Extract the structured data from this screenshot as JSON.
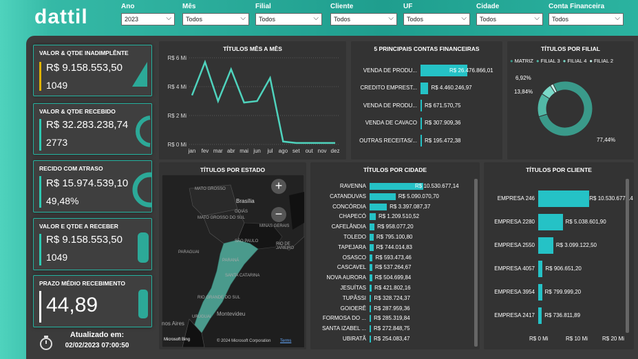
{
  "brand": {
    "logo": "dattil"
  },
  "filters": [
    {
      "label": "Ano",
      "value": "2023"
    },
    {
      "label": "Mês",
      "value": "Todos"
    },
    {
      "label": "Filial",
      "value": "Todos"
    },
    {
      "label": "Cliente",
      "value": "Todos"
    },
    {
      "label": "UF",
      "value": "Todos"
    },
    {
      "label": "Cidade",
      "value": "Todos"
    },
    {
      "label": "Conta Financeira",
      "value": "Todos"
    }
  ],
  "kpis": {
    "inadimplente": {
      "title": "VALOR & QTDE INADIMPLÊNTE",
      "value": "R$ 9.158.553,50",
      "count": "1049",
      "accent": "#e0b400"
    },
    "recebido": {
      "title": "VALOR & QTDE RECEBIDO",
      "value": "R$ 32.283.238,74",
      "count": "2773",
      "accent": "#2ec9b2"
    },
    "atraso": {
      "title": "RECIDO COM ATRASO",
      "value": "R$ 15.974.539,10",
      "count": "49,48%",
      "accent": "#2ec9b2"
    },
    "a_receber": {
      "title": "VALOR E QTDE A RECEBER",
      "value": "R$ 9.158.553,50",
      "count": "1049",
      "accent": "#2ec9b2"
    },
    "prazo": {
      "title": "PRAZO MÉDIO RECEBIMENTO",
      "value": "44,89"
    }
  },
  "footer": {
    "label": "Atualizado em:",
    "datetime": "02/02/2023 07:00:50"
  },
  "map": {
    "title": "TÍTULOS POR ESTADO",
    "labels": [
      "MATO GROSSO",
      "Brasília",
      "GOIÁS",
      "MINAS GERAIS",
      "PARAGUAI",
      "SÃO PAULO",
      "PARANÁ",
      "SANTA CATARINA",
      "RIO GRANDE DO SUL",
      "URUGUAI",
      "Montevideu",
      "nos Aires",
      "RIO DE JANEIRO",
      "MATO GROSSO DO SUL"
    ],
    "zoom_in": "+",
    "zoom_out": "−",
    "attribution": "© 2024 Microsoft Corporation",
    "terms": "Terms",
    "bing": "Microsoft Bing"
  },
  "chart_data": [
    {
      "type": "line",
      "title": "TÍTULOS MÊS A MÊS",
      "x": [
        "jan",
        "fev",
        "mar",
        "abr",
        "mai",
        "jun",
        "jul",
        "ago",
        "set",
        "out",
        "nov",
        "dez"
      ],
      "series": [
        {
          "values": [
            3.4,
            5.7,
            3.0,
            5.2,
            2.9,
            3.0,
            4.6,
            0.2,
            0.1,
            0.1,
            0.1,
            0.1
          ]
        }
      ],
      "yticks": [
        "R$ 0 Mi",
        "R$ 2 Mi",
        "R$ 4 Mi",
        "R$ 6 Mi"
      ],
      "ylim": [
        0,
        6
      ],
      "color": "#4fd3bd"
    },
    {
      "type": "bar",
      "title": "5 PRINCIPAIS CONTAS FINANCEIRAS",
      "categories": [
        "VENDA DE PRODU...",
        "CREDITO EMPREST...",
        "VENDA DE PRODU...",
        "VENDA DE CAVACO",
        "OUTRAS RECEITAS/..."
      ],
      "values": [
        26476866.01,
        4460246.97,
        671570.75,
        307909.36,
        195472.38
      ],
      "labels": [
        "R$ 26.476.866,01",
        "R$ 4.460.246,97",
        "R$ 671.570,75",
        "R$ 307.909,36",
        "R$ 195.472,38"
      ],
      "color": "#25c2c6"
    },
    {
      "type": "pie",
      "title": "TÍTULOS POR FILIAL",
      "categories": [
        "MATRIZ",
        "FILIAL 3",
        "FILIAL 4",
        "FILIAL 2"
      ],
      "values": [
        77.44,
        13.84,
        6.92,
        1.8
      ],
      "labels": [
        "77,44%",
        "13,84%",
        "6,92%"
      ],
      "colors": [
        "#3a9a8a",
        "#52b8a6",
        "#7ad9c8",
        "#c9f2ea"
      ]
    },
    {
      "type": "bar",
      "title": "TÍTULOS POR CIDADE",
      "categories": [
        "RAVENNA",
        "CATANDUVAS",
        "CONCÓRDIA",
        "CHAPECÓ",
        "CAFELÂNDIA",
        "TOLEDO",
        "TAPEJARA",
        "OSASCO",
        "CASCAVEL",
        "NOVA AURORA",
        "JESUÍTAS",
        "TUPÃSSI",
        "GOIOERÊ",
        "FORMOSA DO ...",
        "SANTA IZABEL ...",
        "UBIRATÃ"
      ],
      "values": [
        10530677.14,
        5090070.7,
        3397087.37,
        1209510.52,
        958077.2,
        795100.8,
        744014.83,
        593473.46,
        537264.67,
        504699.84,
        421802.16,
        328724.37,
        287959.36,
        285319.84,
        272848.75,
        254083.47
      ],
      "labels": [
        "R$ 10.530.677,14",
        "R$ 5.090.070,70",
        "R$ 3.397.087,37",
        "R$ 1.209.510,52",
        "R$ 958.077,20",
        "R$ 795.100,80",
        "R$ 744.014,83",
        "R$ 593.473,46",
        "R$ 537.264,67",
        "R$ 504.699,84",
        "R$ 421.802,16",
        "R$ 328.724,37",
        "R$ 287.959,36",
        "R$ 285.319,84",
        "R$ 272.848,75",
        "R$ 254.083,47"
      ],
      "color": "#25c2c6"
    },
    {
      "type": "bar",
      "title": "TÍTULOS POR CLIENTE",
      "categories": [
        "EMPRESA 246",
        "EMPRESA 2280",
        "EMPRESA 2550",
        "EMPRESA 4057",
        "EMPRESA 3954",
        "EMPRESA 2417"
      ],
      "values": [
        10530677.14,
        5038601.9,
        3099122.5,
        906651.2,
        799999.2,
        736811.89
      ],
      "labels": [
        "R$ 10.530.677,14",
        "R$ 5.038.601,90",
        "R$ 3.099.122,50",
        "R$ 906.651,20",
        "R$ 799.999,20",
        "R$ 736.811,89"
      ],
      "xticks": [
        "R$ 0 Mi",
        "R$ 10 Mi",
        "R$ 20 Mi"
      ],
      "xlim": [
        0,
        20000000
      ],
      "color": "#25c2c6"
    }
  ]
}
